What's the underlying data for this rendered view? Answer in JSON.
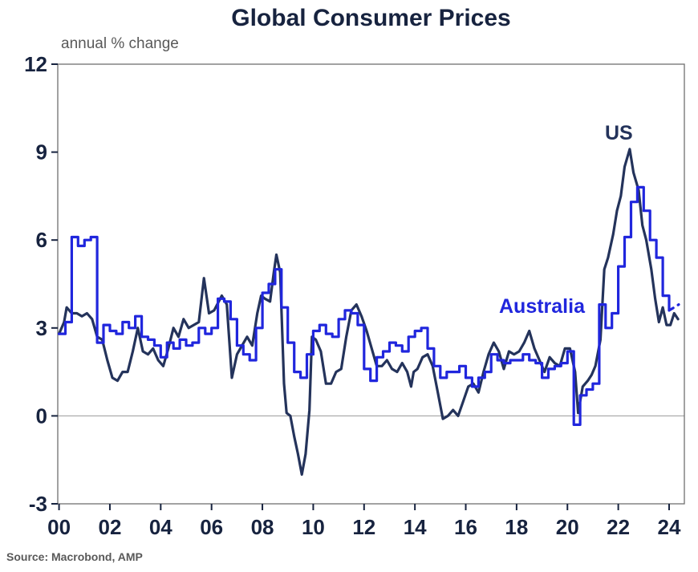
{
  "chart_data": {
    "type": "line",
    "title": "Global Consumer Prices",
    "subtitle": "annual % change",
    "xlabel": "",
    "ylabel": "",
    "xlim": [
      1999.95,
      2024.6
    ],
    "ylim": [
      -3,
      12
    ],
    "grid": "zero-line-only",
    "legend_position": "inline-annotations",
    "y_ticks": [
      12,
      9,
      6,
      3,
      0,
      -3
    ],
    "x_ticks": [
      {
        "value": 2000,
        "label": "00"
      },
      {
        "value": 2002,
        "label": "02"
      },
      {
        "value": 2004,
        "label": "04"
      },
      {
        "value": 2006,
        "label": "06"
      },
      {
        "value": 2008,
        "label": "08"
      },
      {
        "value": 2010,
        "label": "10"
      },
      {
        "value": 2012,
        "label": "12"
      },
      {
        "value": 2014,
        "label": "14"
      },
      {
        "value": 2016,
        "label": "16"
      },
      {
        "value": 2018,
        "label": "18"
      },
      {
        "value": 2020,
        "label": "20"
      },
      {
        "value": 2022,
        "label": "22"
      },
      {
        "value": 2024,
        "label": "24"
      }
    ],
    "colors": {
      "us": "#24335b",
      "australia": "#2026dd",
      "title": "#17233f",
      "tick_label": "#17233f",
      "subtitle": "#595959",
      "frame": "#6f6f6f",
      "zero_line": "#9a9a9a",
      "source": "#595959"
    },
    "series": [
      {
        "name": "US",
        "color_key": "us",
        "interpolation": "linear",
        "points": [
          [
            2000.0,
            2.8
          ],
          [
            2000.2,
            3.2
          ],
          [
            2000.3,
            3.7
          ],
          [
            2000.5,
            3.5
          ],
          [
            2000.7,
            3.5
          ],
          [
            2000.9,
            3.4
          ],
          [
            2001.1,
            3.5
          ],
          [
            2001.3,
            3.3
          ],
          [
            2001.5,
            2.7
          ],
          [
            2001.7,
            2.6
          ],
          [
            2001.9,
            1.9
          ],
          [
            2002.1,
            1.3
          ],
          [
            2002.3,
            1.2
          ],
          [
            2002.5,
            1.5
          ],
          [
            2002.7,
            1.5
          ],
          [
            2002.9,
            2.2
          ],
          [
            2003.1,
            3.0
          ],
          [
            2003.3,
            2.2
          ],
          [
            2003.5,
            2.1
          ],
          [
            2003.7,
            2.3
          ],
          [
            2003.9,
            1.9
          ],
          [
            2004.1,
            1.7
          ],
          [
            2004.3,
            2.3
          ],
          [
            2004.5,
            3.0
          ],
          [
            2004.7,
            2.7
          ],
          [
            2004.9,
            3.3
          ],
          [
            2005.1,
            3.0
          ],
          [
            2005.3,
            3.1
          ],
          [
            2005.5,
            3.2
          ],
          [
            2005.7,
            4.7
          ],
          [
            2005.9,
            3.5
          ],
          [
            2006.1,
            3.6
          ],
          [
            2006.4,
            4.1
          ],
          [
            2006.6,
            3.8
          ],
          [
            2006.8,
            1.3
          ],
          [
            2007.0,
            2.1
          ],
          [
            2007.2,
            2.4
          ],
          [
            2007.4,
            2.7
          ],
          [
            2007.6,
            2.4
          ],
          [
            2007.8,
            3.5
          ],
          [
            2007.95,
            4.1
          ],
          [
            2008.1,
            4.0
          ],
          [
            2008.3,
            3.9
          ],
          [
            2008.45,
            4.9
          ],
          [
            2008.55,
            5.5
          ],
          [
            2008.7,
            4.9
          ],
          [
            2008.85,
            1.1
          ],
          [
            2008.95,
            0.1
          ],
          [
            2009.1,
            0.0
          ],
          [
            2009.25,
            -0.7
          ],
          [
            2009.4,
            -1.3
          ],
          [
            2009.55,
            -2.0
          ],
          [
            2009.7,
            -1.3
          ],
          [
            2009.85,
            0.2
          ],
          [
            2009.95,
            2.7
          ],
          [
            2010.1,
            2.6
          ],
          [
            2010.3,
            2.2
          ],
          [
            2010.5,
            1.1
          ],
          [
            2010.7,
            1.1
          ],
          [
            2010.9,
            1.5
          ],
          [
            2011.1,
            1.6
          ],
          [
            2011.3,
            2.7
          ],
          [
            2011.5,
            3.6
          ],
          [
            2011.7,
            3.8
          ],
          [
            2011.9,
            3.4
          ],
          [
            2012.1,
            2.9
          ],
          [
            2012.3,
            2.3
          ],
          [
            2012.5,
            1.7
          ],
          [
            2012.7,
            1.7
          ],
          [
            2012.9,
            1.9
          ],
          [
            2013.1,
            1.6
          ],
          [
            2013.3,
            1.5
          ],
          [
            2013.5,
            1.8
          ],
          [
            2013.7,
            1.5
          ],
          [
            2013.85,
            1.0
          ],
          [
            2013.95,
            1.5
          ],
          [
            2014.1,
            1.6
          ],
          [
            2014.3,
            2.0
          ],
          [
            2014.5,
            2.1
          ],
          [
            2014.7,
            1.7
          ],
          [
            2014.9,
            0.8
          ],
          [
            2015.1,
            -0.1
          ],
          [
            2015.3,
            0.0
          ],
          [
            2015.5,
            0.2
          ],
          [
            2015.7,
            0.0
          ],
          [
            2015.9,
            0.5
          ],
          [
            2016.1,
            1.0
          ],
          [
            2016.3,
            1.1
          ],
          [
            2016.5,
            0.8
          ],
          [
            2016.7,
            1.5
          ],
          [
            2016.9,
            2.1
          ],
          [
            2017.1,
            2.5
          ],
          [
            2017.3,
            2.2
          ],
          [
            2017.5,
            1.6
          ],
          [
            2017.7,
            2.2
          ],
          [
            2017.9,
            2.1
          ],
          [
            2018.1,
            2.2
          ],
          [
            2018.3,
            2.5
          ],
          [
            2018.5,
            2.9
          ],
          [
            2018.7,
            2.3
          ],
          [
            2018.9,
            1.9
          ],
          [
            2019.1,
            1.5
          ],
          [
            2019.3,
            2.0
          ],
          [
            2019.5,
            1.8
          ],
          [
            2019.7,
            1.7
          ],
          [
            2019.9,
            2.3
          ],
          [
            2020.1,
            2.3
          ],
          [
            2020.3,
            1.5
          ],
          [
            2020.42,
            0.1
          ],
          [
            2020.6,
            1.0
          ],
          [
            2020.8,
            1.2
          ],
          [
            2020.95,
            1.4
          ],
          [
            2021.1,
            1.7
          ],
          [
            2021.3,
            2.6
          ],
          [
            2021.45,
            5.0
          ],
          [
            2021.6,
            5.4
          ],
          [
            2021.8,
            6.2
          ],
          [
            2021.95,
            7.0
          ],
          [
            2022.1,
            7.5
          ],
          [
            2022.25,
            8.5
          ],
          [
            2022.45,
            9.1
          ],
          [
            2022.6,
            8.3
          ],
          [
            2022.8,
            7.7
          ],
          [
            2022.95,
            6.5
          ],
          [
            2023.1,
            6.0
          ],
          [
            2023.3,
            5.0
          ],
          [
            2023.45,
            4.0
          ],
          [
            2023.6,
            3.2
          ],
          [
            2023.75,
            3.7
          ],
          [
            2023.9,
            3.1
          ],
          [
            2024.05,
            3.1
          ],
          [
            2024.2,
            3.5
          ],
          [
            2024.35,
            3.3
          ]
        ]
      },
      {
        "name": "Australia",
        "color_key": "australia",
        "interpolation": "step",
        "points": [
          [
            2000.0,
            2.8
          ],
          [
            2000.25,
            3.2
          ],
          [
            2000.5,
            6.1
          ],
          [
            2000.75,
            5.8
          ],
          [
            2001.0,
            6.0
          ],
          [
            2001.25,
            6.1
          ],
          [
            2001.5,
            2.5
          ],
          [
            2001.75,
            3.1
          ],
          [
            2002.0,
            2.9
          ],
          [
            2002.25,
            2.8
          ],
          [
            2002.5,
            3.2
          ],
          [
            2002.75,
            3.0
          ],
          [
            2003.0,
            3.4
          ],
          [
            2003.25,
            2.7
          ],
          [
            2003.5,
            2.6
          ],
          [
            2003.75,
            2.4
          ],
          [
            2004.0,
            2.0
          ],
          [
            2004.25,
            2.5
          ],
          [
            2004.5,
            2.3
          ],
          [
            2004.75,
            2.6
          ],
          [
            2005.0,
            2.4
          ],
          [
            2005.25,
            2.5
          ],
          [
            2005.5,
            3.0
          ],
          [
            2005.75,
            2.8
          ],
          [
            2006.0,
            3.0
          ],
          [
            2006.25,
            4.0
          ],
          [
            2006.5,
            3.9
          ],
          [
            2006.75,
            3.3
          ],
          [
            2007.0,
            2.4
          ],
          [
            2007.25,
            2.1
          ],
          [
            2007.5,
            1.9
          ],
          [
            2007.75,
            3.0
          ],
          [
            2008.0,
            4.2
          ],
          [
            2008.25,
            4.5
          ],
          [
            2008.5,
            5.0
          ],
          [
            2008.75,
            3.7
          ],
          [
            2009.0,
            2.5
          ],
          [
            2009.25,
            1.5
          ],
          [
            2009.5,
            1.3
          ],
          [
            2009.75,
            2.1
          ],
          [
            2010.0,
            2.9
          ],
          [
            2010.25,
            3.1
          ],
          [
            2010.5,
            2.8
          ],
          [
            2010.75,
            2.7
          ],
          [
            2011.0,
            3.3
          ],
          [
            2011.25,
            3.6
          ],
          [
            2011.5,
            3.5
          ],
          [
            2011.75,
            3.1
          ],
          [
            2012.0,
            1.6
          ],
          [
            2012.25,
            1.2
          ],
          [
            2012.5,
            2.0
          ],
          [
            2012.75,
            2.2
          ],
          [
            2013.0,
            2.5
          ],
          [
            2013.25,
            2.4
          ],
          [
            2013.5,
            2.2
          ],
          [
            2013.75,
            2.7
          ],
          [
            2014.0,
            2.9
          ],
          [
            2014.25,
            3.0
          ],
          [
            2014.5,
            2.3
          ],
          [
            2014.75,
            1.7
          ],
          [
            2015.0,
            1.3
          ],
          [
            2015.25,
            1.5
          ],
          [
            2015.5,
            1.5
          ],
          [
            2015.75,
            1.7
          ],
          [
            2016.0,
            1.3
          ],
          [
            2016.25,
            1.0
          ],
          [
            2016.5,
            1.3
          ],
          [
            2016.75,
            1.5
          ],
          [
            2017.0,
            2.1
          ],
          [
            2017.25,
            1.9
          ],
          [
            2017.5,
            1.8
          ],
          [
            2017.75,
            1.9
          ],
          [
            2018.0,
            1.9
          ],
          [
            2018.25,
            2.1
          ],
          [
            2018.5,
            1.9
          ],
          [
            2018.75,
            1.8
          ],
          [
            2019.0,
            1.3
          ],
          [
            2019.25,
            1.6
          ],
          [
            2019.5,
            1.7
          ],
          [
            2019.75,
            1.8
          ],
          [
            2020.0,
            2.2
          ],
          [
            2020.25,
            -0.3
          ],
          [
            2020.5,
            0.7
          ],
          [
            2020.75,
            0.9
          ],
          [
            2021.0,
            1.1
          ],
          [
            2021.25,
            3.8
          ],
          [
            2021.5,
            3.0
          ],
          [
            2021.75,
            3.5
          ],
          [
            2022.0,
            5.1
          ],
          [
            2022.25,
            6.1
          ],
          [
            2022.5,
            7.3
          ],
          [
            2022.75,
            7.8
          ],
          [
            2023.0,
            7.0
          ],
          [
            2023.25,
            6.0
          ],
          [
            2023.5,
            5.4
          ],
          [
            2023.75,
            4.1
          ],
          [
            2024.0,
            3.6
          ]
        ],
        "dashed_tail": [
          [
            2024.0,
            3.6
          ],
          [
            2024.2,
            3.7
          ],
          [
            2024.38,
            3.8
          ]
        ]
      }
    ],
    "annotations": [
      {
        "text": "US",
        "series": "US"
      },
      {
        "text": "Australia",
        "series": "Australia"
      }
    ]
  },
  "source": {
    "text": "Source: Macrobond, AMP"
  }
}
